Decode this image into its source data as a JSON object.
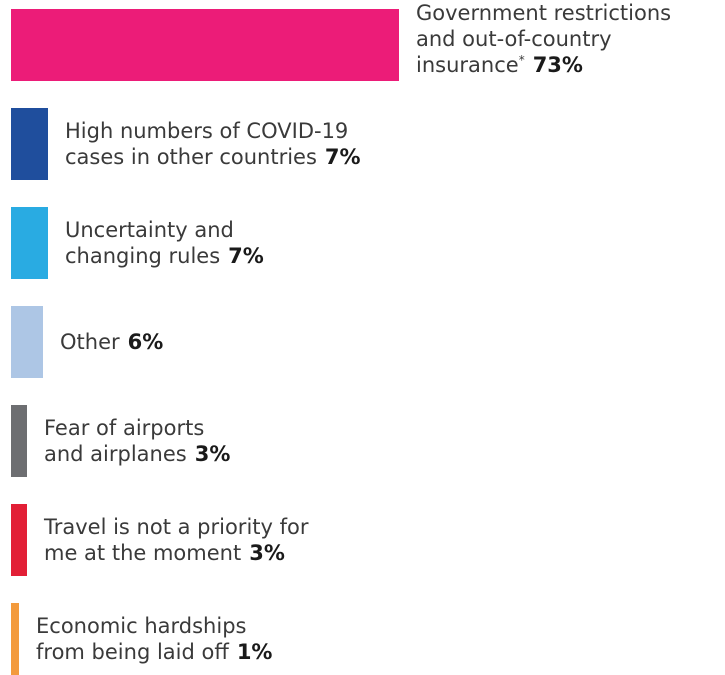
{
  "chart_data": {
    "type": "bar",
    "orientation": "horizontal",
    "unit": "%",
    "bars": [
      {
        "category": "Government restrictions and out-of-country insurance",
        "lines": [
          "Government restrictions",
          "and out-of-country",
          "insurance"
        ],
        "footnote": "*",
        "value": 73,
        "value_label": "73%",
        "color": "#ec1c78"
      },
      {
        "category": "High numbers of COVID-19 cases in other countries",
        "lines": [
          "High numbers of COVID-19",
          "cases in other countries"
        ],
        "value": 7,
        "value_label": "7%",
        "color": "#1f4e9d"
      },
      {
        "category": "Uncertainty and changing rules",
        "lines": [
          "Uncertainty and",
          "changing rules"
        ],
        "value": 7,
        "value_label": "7%",
        "color": "#29abe2"
      },
      {
        "category": "Other",
        "lines": [
          "Other"
        ],
        "value": 6,
        "value_label": "6%",
        "color": "#adc6e5"
      },
      {
        "category": "Fear of airports and airplanes",
        "lines": [
          "Fear of airports",
          "and airplanes"
        ],
        "value": 3,
        "value_label": "3%",
        "color": "#6d6e71"
      },
      {
        "category": "Travel is not a priority for me at the moment",
        "lines": [
          "Travel is not a priority for",
          "me at the moment"
        ],
        "value": 3,
        "value_label": "3%",
        "color": "#e21f36"
      },
      {
        "category": "Economic hardships from being laid off",
        "lines": [
          "Economic hardships",
          "from being laid off"
        ],
        "value": 1,
        "value_label": "1%",
        "color": "#f39a3c"
      }
    ]
  }
}
